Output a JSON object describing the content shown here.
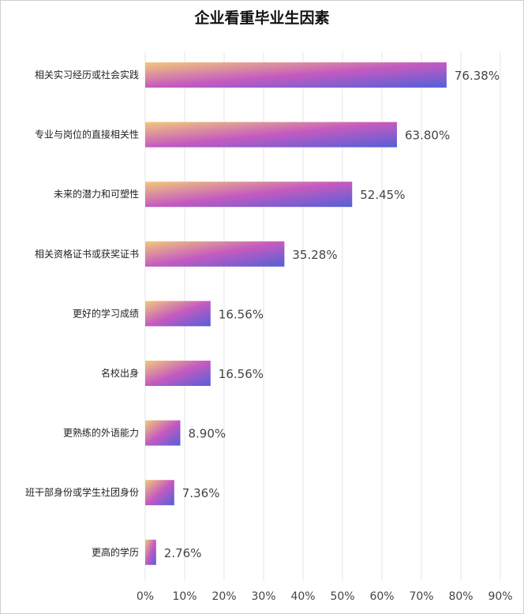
{
  "chart_data": {
    "type": "bar",
    "orientation": "horizontal",
    "title": "企业看重毕业生因素",
    "categories": [
      "相关实习经历或社会实践",
      "专业与岗位的直接相关性",
      "未来的潜力和可塑性",
      "相关资格证书或获奖证书",
      "更好的学习成绩",
      "名校出身",
      "更熟练的外语能力",
      "班干部身份或学生社团身份",
      "更高的学历"
    ],
    "values": [
      76.38,
      63.8,
      52.45,
      35.28,
      16.56,
      16.56,
      8.9,
      7.36,
      2.76
    ],
    "value_labels": [
      "76.38%",
      "63.80%",
      "52.45%",
      "35.28%",
      "16.56%",
      "16.56%",
      "8.90%",
      "7.36%",
      "2.76%"
    ],
    "xticks": [
      "0%",
      "10%",
      "20%",
      "30%",
      "40%",
      "50%",
      "60%",
      "70%",
      "80%",
      "90%"
    ],
    "xlim": [
      0,
      90
    ],
    "grid": true,
    "colors": {
      "gradient_start": "#f2c97a",
      "gradient_mid": "#c55ac0",
      "gradient_end": "#5260d8"
    }
  }
}
